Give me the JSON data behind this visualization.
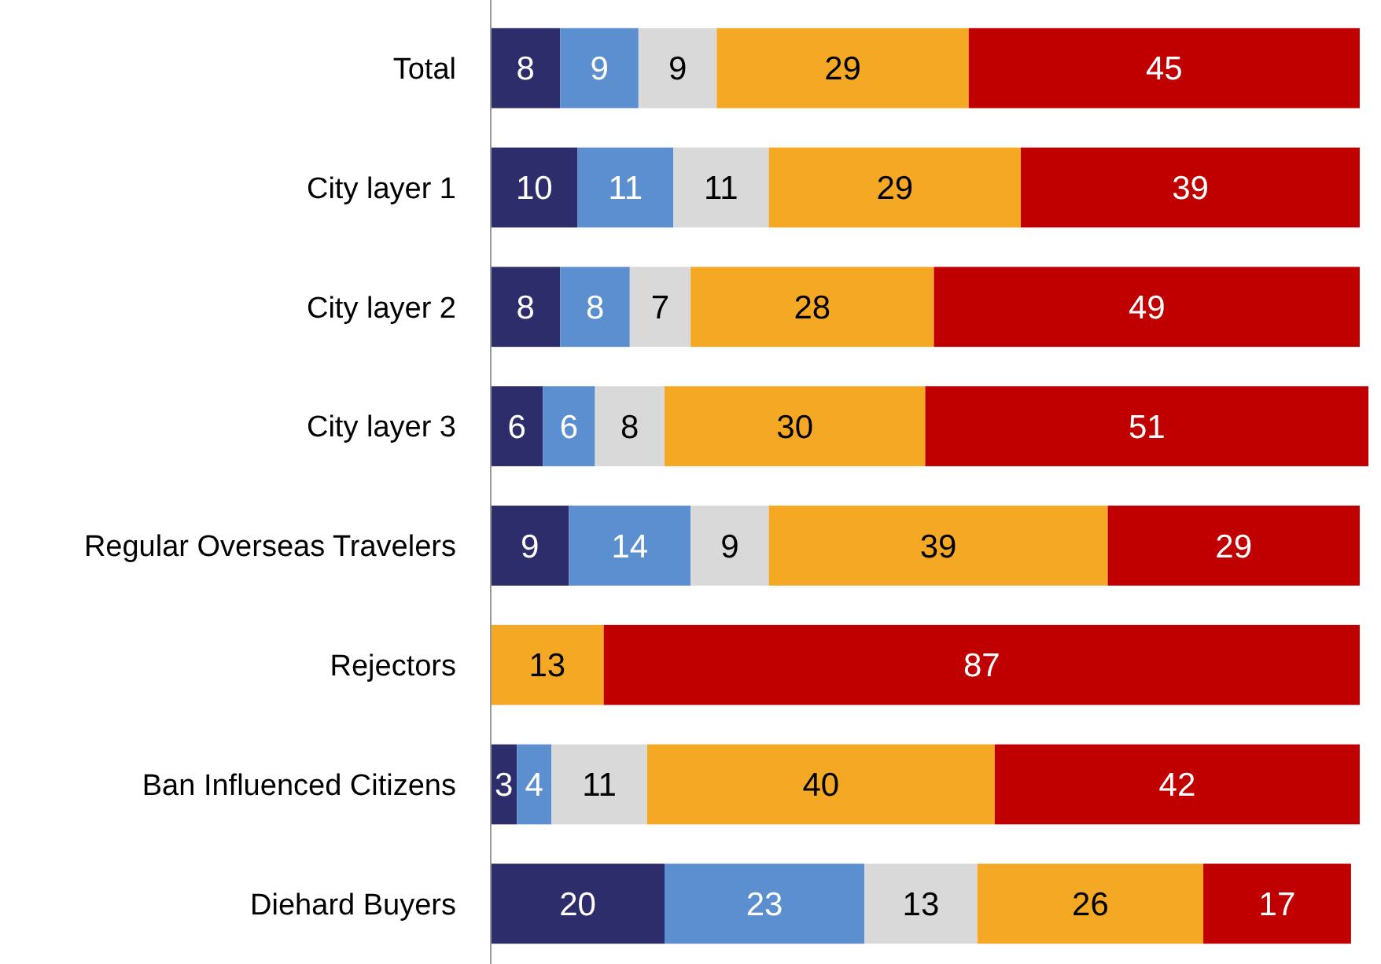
{
  "chart_data": {
    "type": "bar",
    "orientation": "horizontal",
    "stacked": true,
    "data_labels": true,
    "tick_labels": "y",
    "xlim": [
      0,
      101
    ],
    "categories": [
      "Total",
      "City layer 1",
      "City layer 2",
      "City layer 3",
      "Regular Overseas Travelers",
      "Rejectors",
      "Ban Influenced Citizens",
      "Diehard Buyers"
    ],
    "series": [
      {
        "color": "#2e2d6b",
        "values": [
          8,
          10,
          8,
          6,
          9,
          null,
          3,
          20
        ]
      },
      {
        "color": "#5b8fd0",
        "values": [
          9,
          11,
          8,
          6,
          14,
          null,
          4,
          23
        ]
      },
      {
        "color": "#d9d9d9",
        "values": [
          9,
          11,
          7,
          8,
          9,
          null,
          11,
          13
        ]
      },
      {
        "color": "#f5a823",
        "values": [
          29,
          29,
          28,
          30,
          39,
          13,
          40,
          26
        ]
      },
      {
        "color": "#c00000",
        "values": [
          45,
          39,
          49,
          51,
          29,
          87,
          42,
          17
        ]
      }
    ]
  }
}
